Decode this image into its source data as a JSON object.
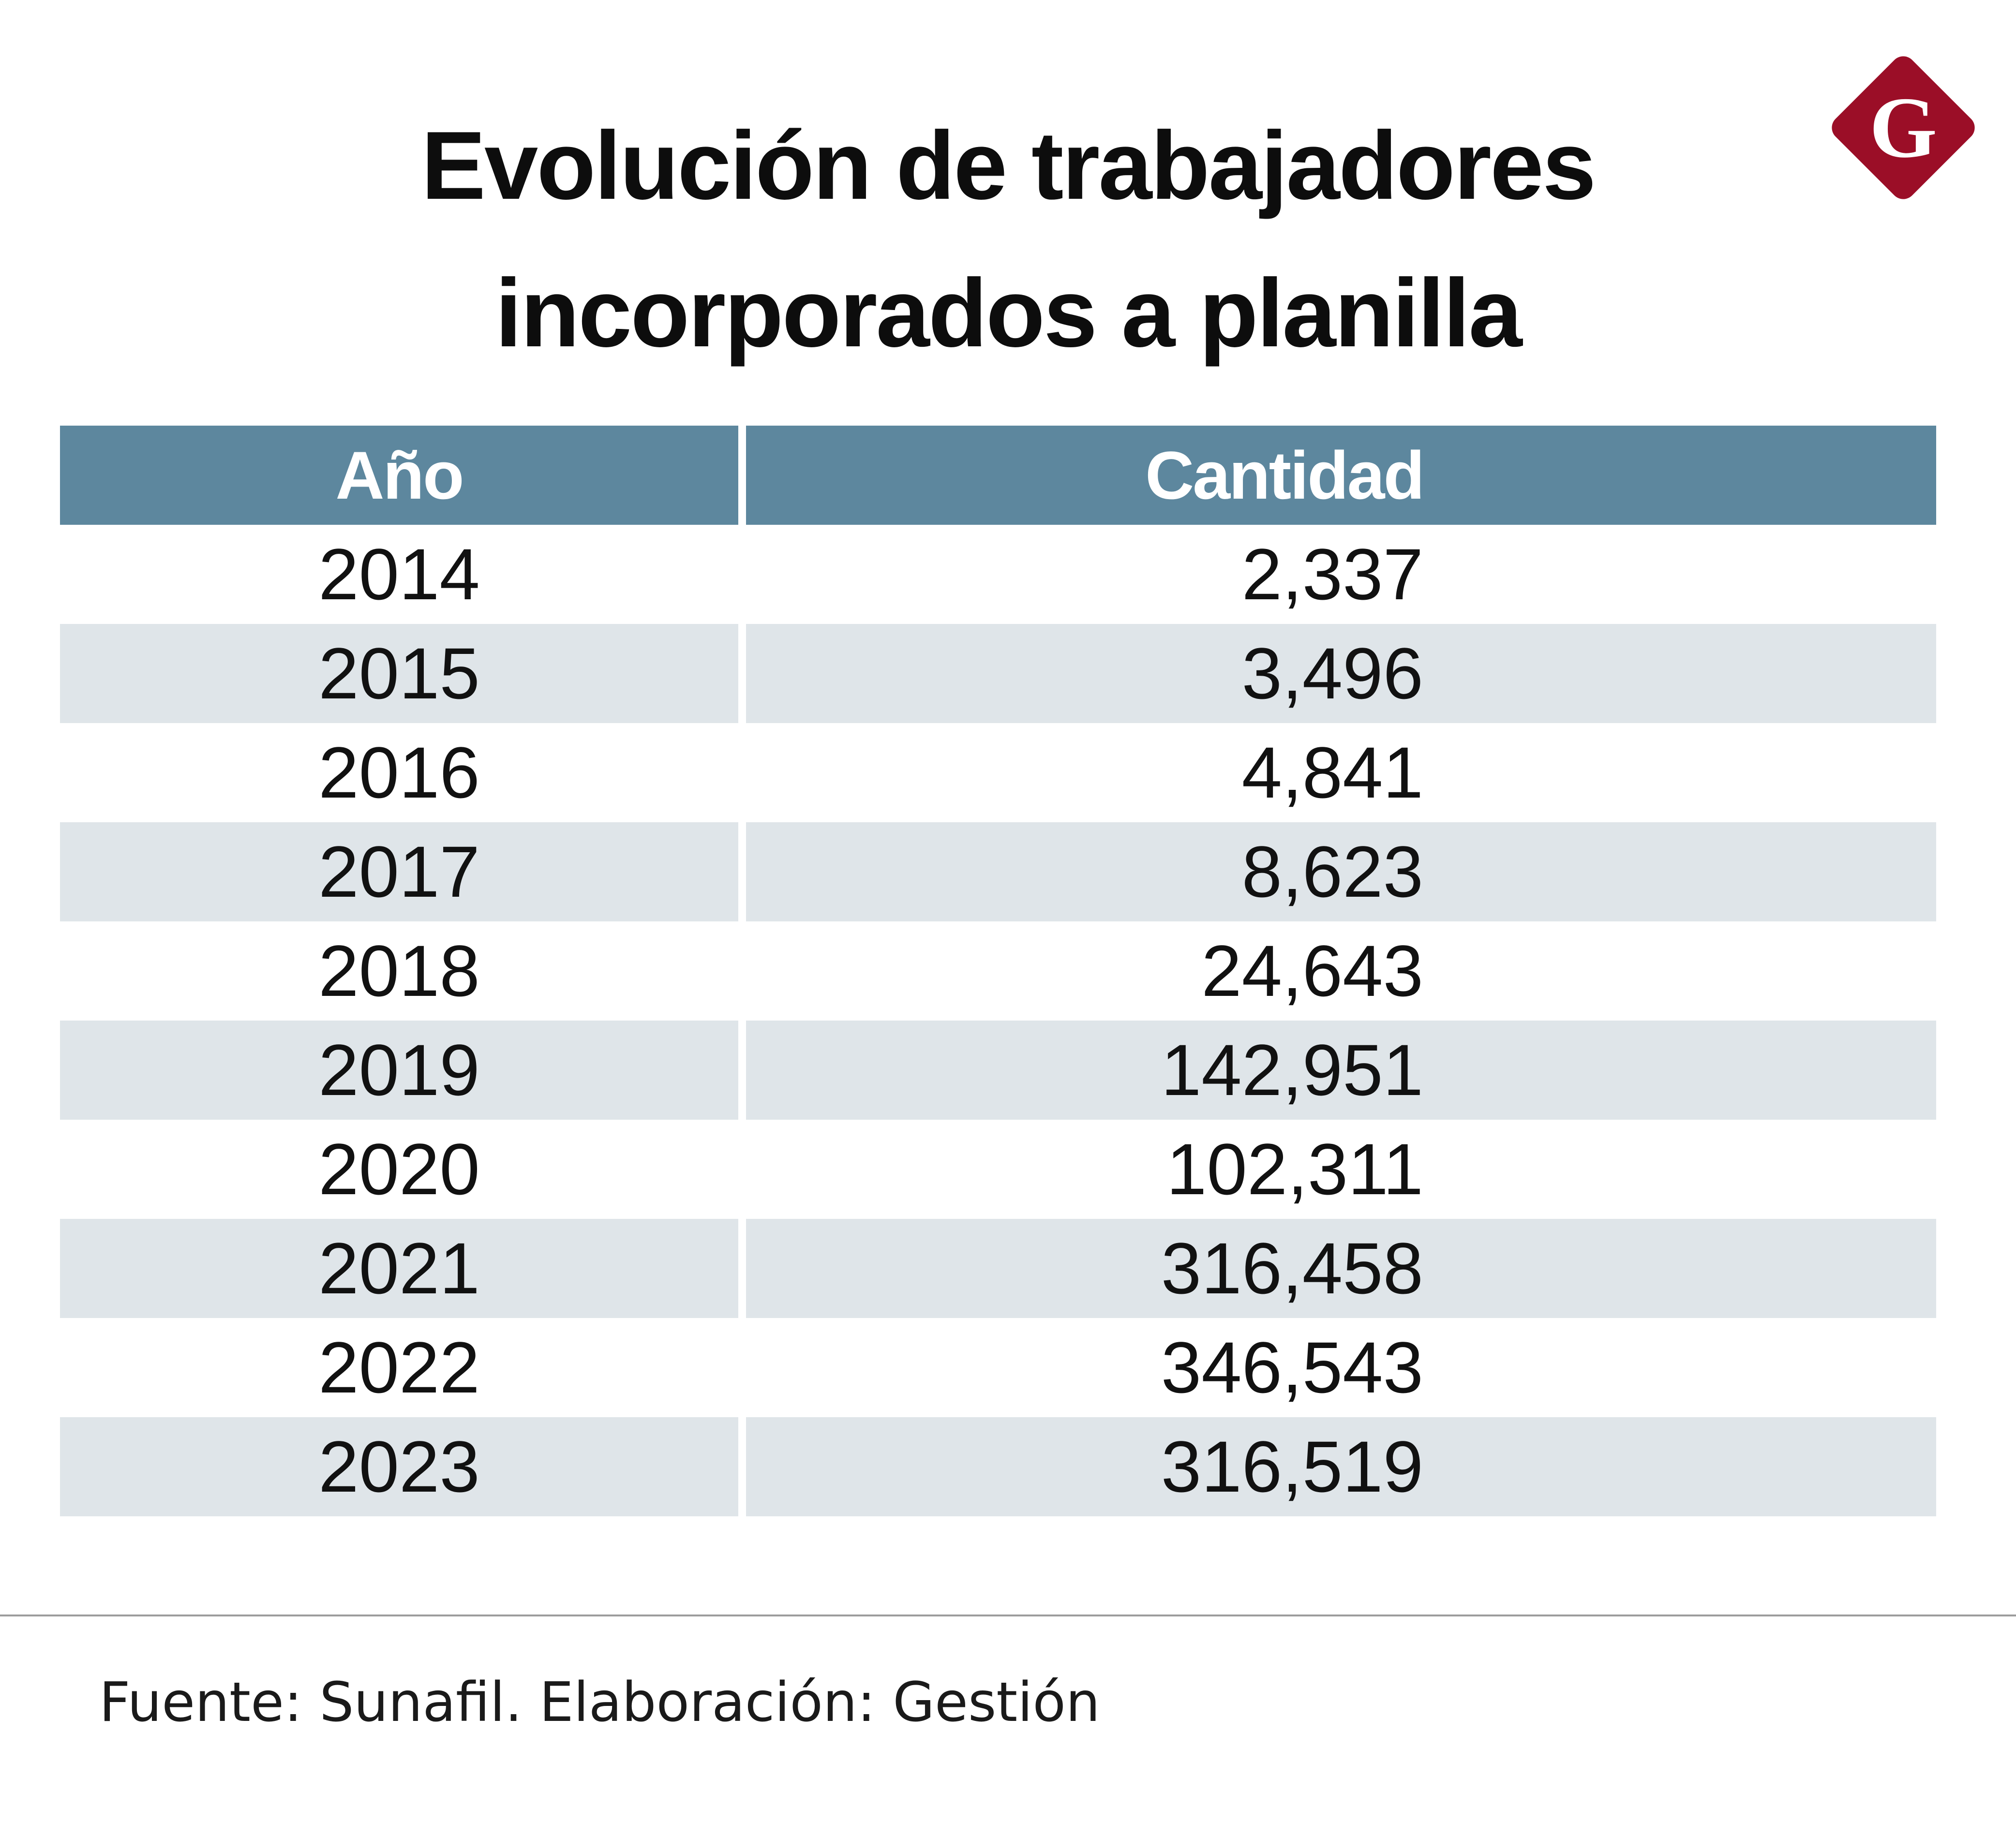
{
  "title_line1": "Evolución de trabajadores",
  "title_line2": "incorporados a planilla",
  "logo": {
    "letter": "G",
    "color": "#9b0e27",
    "icon": "gestion-logo-icon"
  },
  "colors": {
    "header_bg": "#5d879e",
    "row_shade": "#dfe5e9"
  },
  "chart_data": {
    "type": "table",
    "columns": [
      "Año",
      "Cantidad"
    ],
    "rows": [
      [
        "2014",
        "2,337"
      ],
      [
        "2015",
        "3,496"
      ],
      [
        "2016",
        "4,841"
      ],
      [
        "2017",
        "8,623"
      ],
      [
        "2018",
        "24,643"
      ],
      [
        "2019",
        "142,951"
      ],
      [
        "2020",
        "102,311"
      ],
      [
        "2021",
        "316,458"
      ],
      [
        "2022",
        "346,543"
      ],
      [
        "2023",
        "316,519"
      ]
    ]
  },
  "source": "Fuente: Sunafil. Elaboración: Gestión"
}
